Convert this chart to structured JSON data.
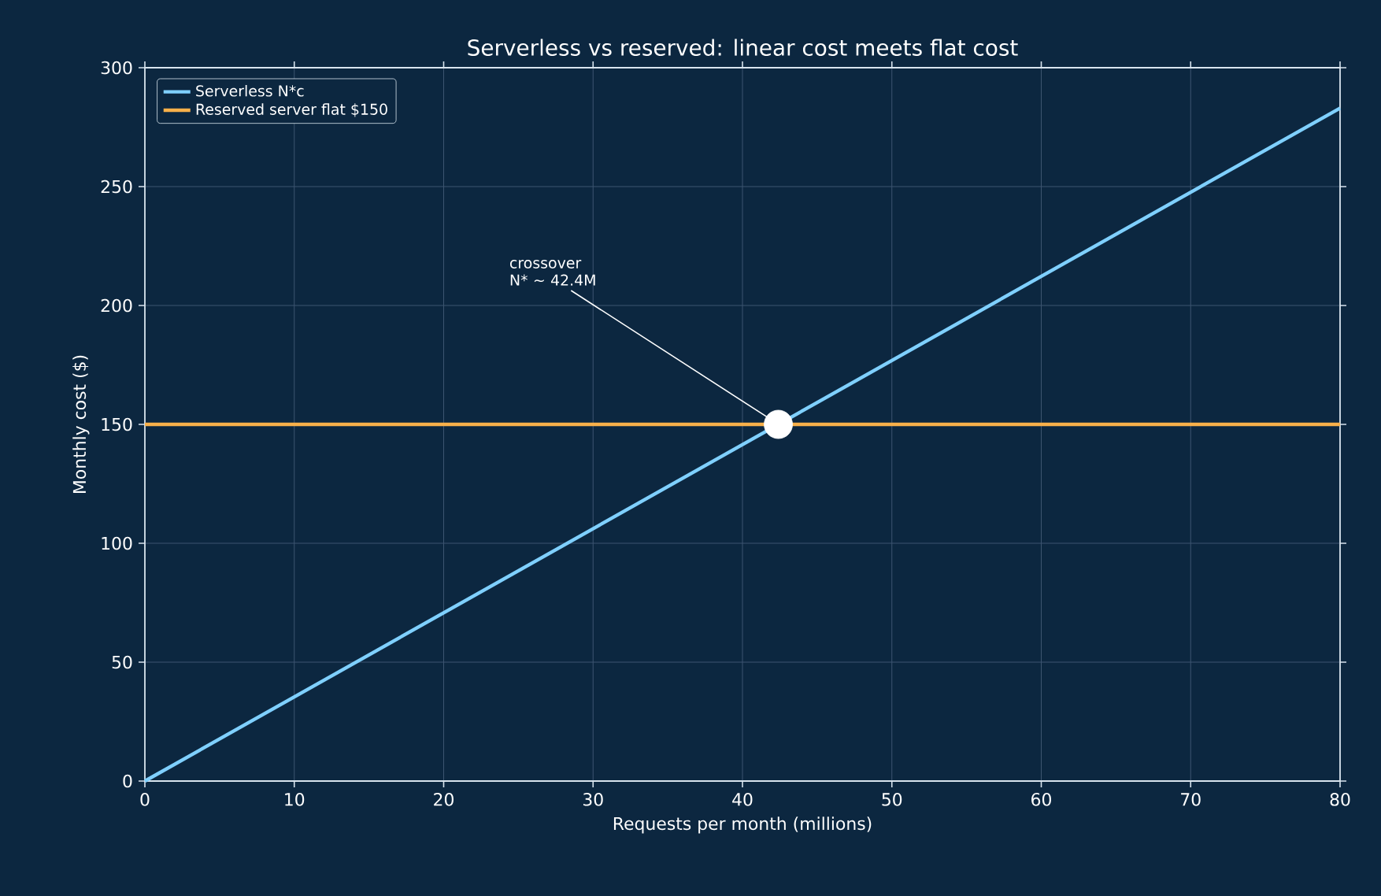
{
  "chart_data": {
    "type": "line",
    "title": "Serverless vs reserved: linear cost meets flat cost",
    "xlabel": "Requests per month (millions)",
    "ylabel": "Monthly cost ($)",
    "xlim": [
      0,
      80
    ],
    "ylim": [
      0,
      300
    ],
    "xticks": [
      0,
      10,
      20,
      30,
      40,
      50,
      60,
      70,
      80
    ],
    "yticks": [
      0,
      50,
      100,
      150,
      200,
      250,
      300
    ],
    "grid": true,
    "legend": "top left",
    "line_style": "solid",
    "series": [
      {
        "name": "Serverless  N*c",
        "color": "#7fd0ff",
        "x": [
          0,
          80
        ],
        "values": [
          0,
          283
        ]
      },
      {
        "name": "Reserved server  flat $150",
        "color": "#f8b04a",
        "x": [
          0,
          80
        ],
        "values": [
          150,
          150
        ]
      },
      {
        "type": "scatter",
        "color": "#ffffff",
        "x": [
          42.4
        ],
        "values": [
          150
        ]
      }
    ],
    "annotations": [
      {
        "text": "crossover N* ~ 42.4M",
        "x": 42.4,
        "y": 150
      }
    ]
  }
}
